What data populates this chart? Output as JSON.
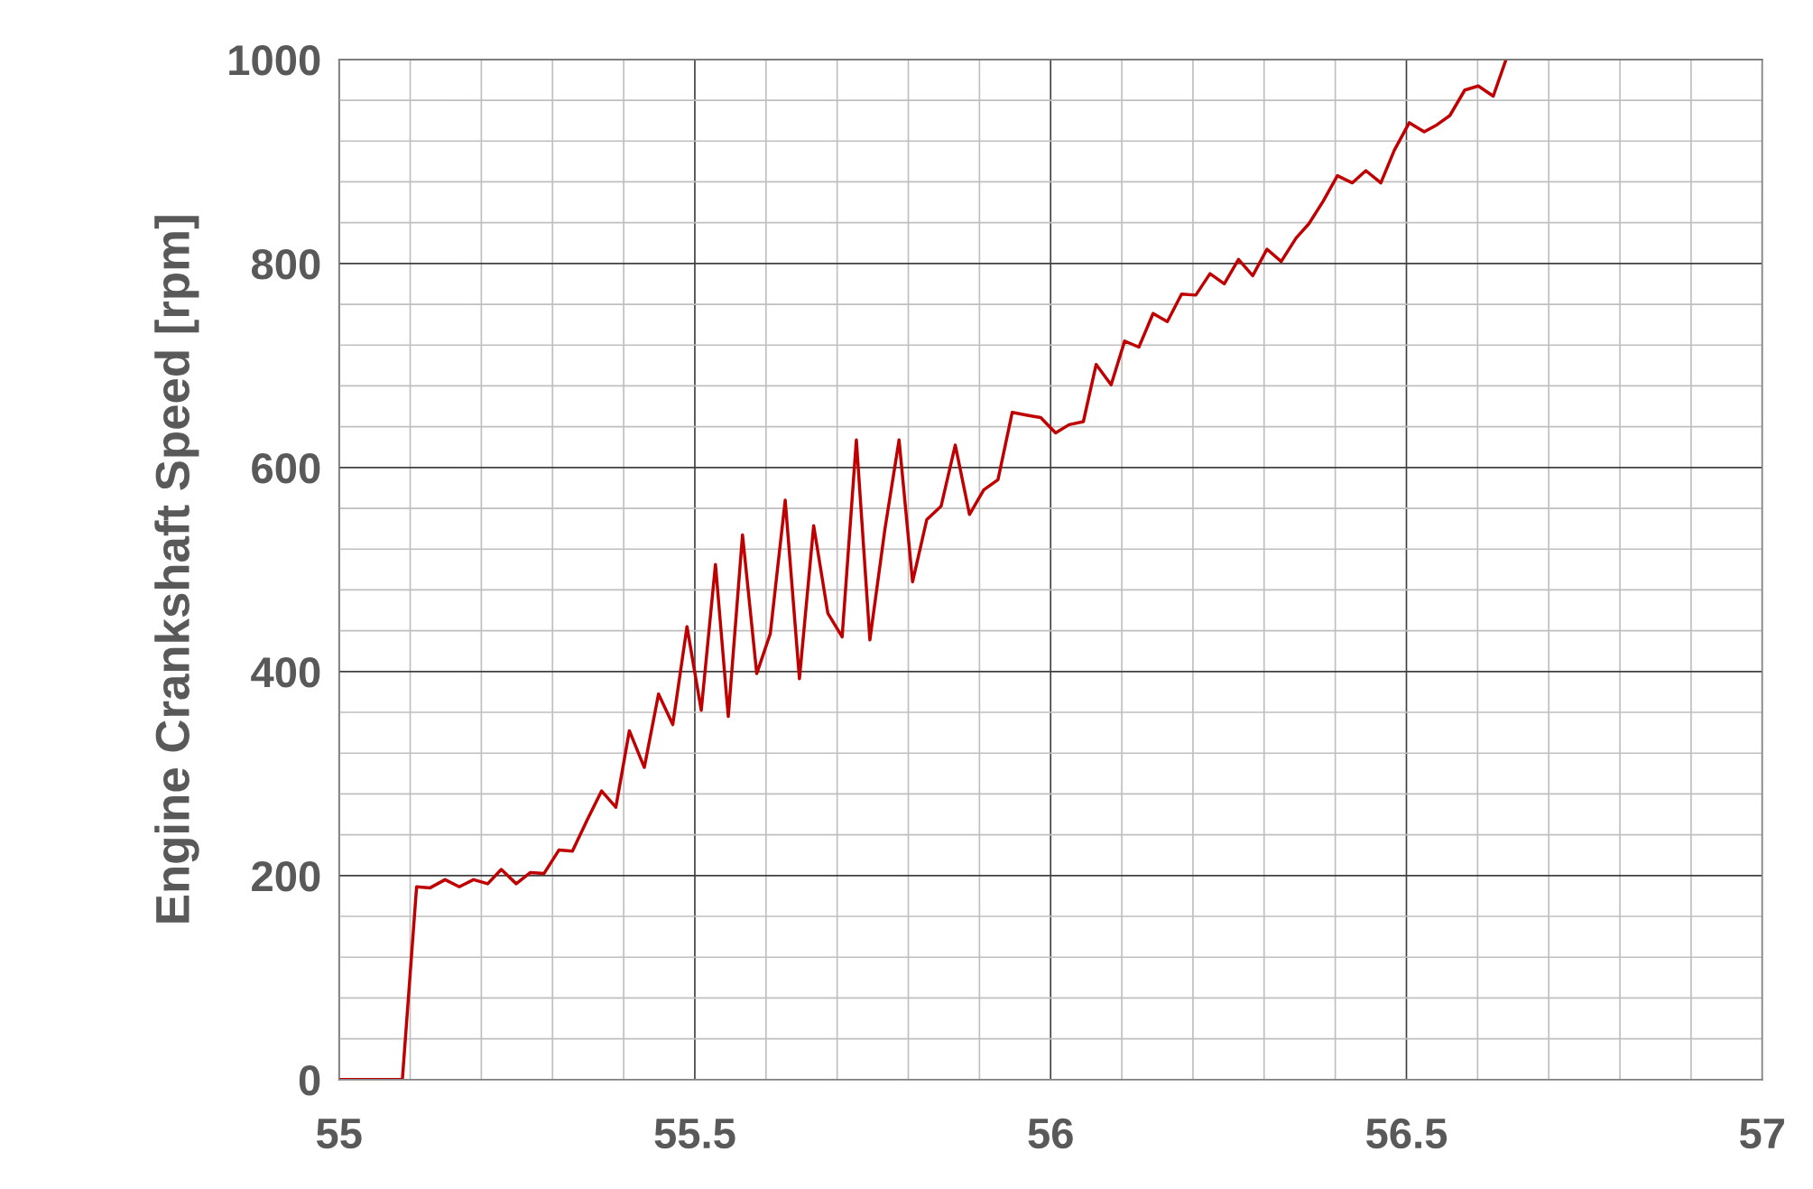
{
  "chart_data": {
    "type": "line",
    "ylabel": "Engine Crankshaft Speed [rpm]",
    "x": [
      55,
      55.089,
      55.109,
      55.128,
      55.149,
      55.169,
      55.189,
      55.209,
      55.228,
      55.249,
      55.269,
      55.288,
      55.309,
      55.328,
      55.349,
      55.369,
      55.389,
      55.408,
      55.429,
      55.449,
      55.469,
      55.489,
      55.509,
      55.529,
      55.547,
      55.567,
      55.587,
      55.606,
      55.627,
      55.647,
      55.667,
      55.687,
      55.707,
      55.727,
      55.746,
      55.767,
      55.787,
      55.806,
      55.826,
      55.846,
      55.866,
      55.886,
      55.906,
      55.926,
      55.946,
      55.969,
      55.986,
      56.007,
      56.026,
      56.046,
      56.064,
      56.085,
      56.104,
      56.124,
      56.144,
      56.164,
      56.184,
      56.204,
      56.224,
      56.244,
      56.264,
      56.284,
      56.304,
      56.324,
      56.345,
      56.363,
      56.383,
      56.403,
      56.424,
      56.443,
      56.464,
      56.483,
      56.504,
      56.525,
      56.543,
      56.561,
      56.582,
      56.601,
      56.622,
      56.64
    ],
    "series": [
      {
        "color": "#c00000",
        "values": [
          0,
          0,
          189,
          188,
          196,
          189,
          196,
          192,
          206,
          192,
          203,
          202,
          225,
          224,
          255,
          283,
          267,
          342,
          306,
          378,
          348,
          444,
          362,
          505,
          356,
          534,
          398,
          437,
          568,
          393,
          543,
          457,
          434,
          627,
          431,
          539,
          627,
          488,
          549,
          562,
          622,
          554,
          578,
          588,
          654,
          651,
          649,
          634,
          642,
          645,
          701,
          681,
          724,
          718,
          751,
          743,
          770,
          769,
          790,
          780,
          804,
          788,
          814,
          802,
          825,
          839,
          861,
          886,
          879,
          891,
          879,
          911,
          938,
          929,
          936,
          945,
          970,
          974,
          964,
          1000
        ]
      }
    ],
    "xlim": [
      55,
      57
    ],
    "xticks": [
      55,
      55.5,
      56,
      56.5,
      57
    ],
    "ylim": [
      0,
      1000
    ],
    "yticks": [
      0,
      200,
      400,
      600,
      800,
      1000
    ],
    "grid": true,
    "marker": "none",
    "line_style": "solid"
  }
}
